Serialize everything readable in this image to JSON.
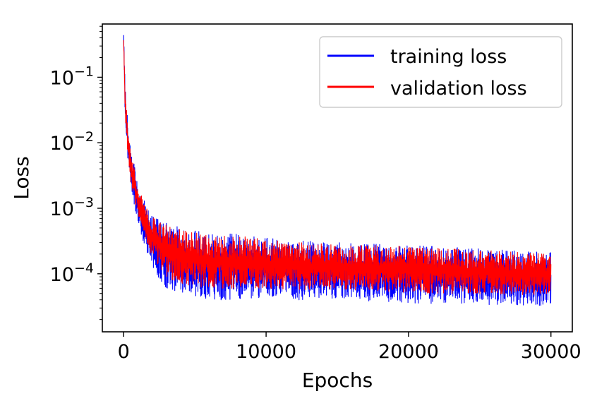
{
  "chart_data": {
    "type": "line",
    "title": "",
    "xlabel": "Epochs",
    "ylabel": "Loss",
    "yscale": "log",
    "xlim": [
      -1500,
      31500
    ],
    "ylim": [
      1.3e-05,
      0.65
    ],
    "grid": false,
    "legend_position": "top-right",
    "x_ticks": [
      0,
      10000,
      20000,
      30000
    ],
    "x_tick_labels": [
      "0",
      "10000",
      "20000",
      "30000"
    ],
    "y_ticks": [
      0.1,
      0.01,
      0.001,
      0.0001
    ],
    "y_tick_labels": [
      {
        "base": "10",
        "exp": "−1"
      },
      {
        "base": "10",
        "exp": "−2"
      },
      {
        "base": "10",
        "exp": "−3"
      },
      {
        "base": "10",
        "exp": "−4"
      }
    ],
    "series": [
      {
        "name": "training loss",
        "color": "#0000ff",
        "envelope": {
          "x": [
            0,
            100,
            300,
            500,
            1000,
            1500,
            2000,
            3000,
            4000,
            5000,
            6000,
            8000,
            10000,
            12000,
            15000,
            18000,
            20000,
            22000,
            25000,
            28000,
            30000
          ],
          "upper": [
            0.5,
            0.07,
            0.02,
            0.008,
            0.0025,
            0.0012,
            0.0008,
            0.0006,
            0.0005,
            0.00045,
            0.00042,
            0.0004,
            0.00035,
            0.00032,
            0.0003,
            0.00028,
            0.00027,
            0.00026,
            0.00024,
            0.00022,
            0.00021
          ],
          "lower": [
            0.3,
            0.02,
            0.005,
            0.002,
            0.0006,
            0.00025,
            0.00012,
            6e-05,
            5e-05,
            4.5e-05,
            4e-05,
            4e-05,
            4.2e-05,
            4e-05,
            4e-05,
            3.8e-05,
            3.6e-05,
            3.5e-05,
            3.4e-05,
            3.3e-05,
            3.2e-05
          ]
        }
      },
      {
        "name": "validation loss",
        "color": "#ff0000",
        "envelope": {
          "x": [
            0,
            100,
            300,
            500,
            1000,
            1500,
            2000,
            3000,
            4000,
            5000,
            6000,
            8000,
            10000,
            12000,
            15000,
            18000,
            20000,
            22000,
            25000,
            28000,
            30000
          ],
          "upper": [
            0.4,
            0.06,
            0.018,
            0.007,
            0.0022,
            0.0011,
            0.00075,
            0.00055,
            0.00048,
            0.00043,
            0.0004,
            0.00038,
            0.00033,
            0.0003,
            0.00028,
            0.00027,
            0.00026,
            0.00025,
            0.00023,
            0.00021,
            0.0002
          ],
          "lower": [
            0.3,
            0.025,
            0.006,
            0.0025,
            0.0008,
            0.00035,
            0.00018,
            9e-05,
            7e-05,
            6.5e-05,
            6e-05,
            6e-05,
            6e-05,
            5.8e-05,
            5.6e-05,
            5.4e-05,
            5.2e-05,
            5e-05,
            5e-05,
            4.8e-05,
            4.7e-05
          ]
        }
      }
    ]
  }
}
